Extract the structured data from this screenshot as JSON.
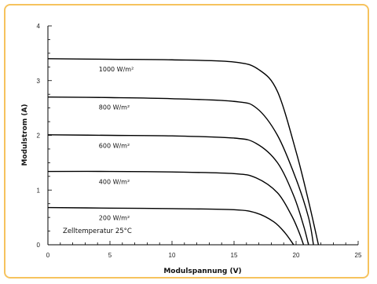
{
  "chart_data": {
    "type": "line",
    "xlabel": "Modulspannung (V)",
    "ylabel": "Modulstrom (A)",
    "xlim": [
      0,
      25
    ],
    "ylim": [
      0,
      4
    ],
    "xticks": [
      0,
      5,
      10,
      15,
      20,
      25
    ],
    "yticks": [
      0,
      1,
      2,
      3,
      4
    ],
    "grid": false,
    "annotation": "Zelltemperatur 25°C",
    "series": [
      {
        "name": "1000 W/m²",
        "isc": 3.4,
        "voc": 21.8,
        "points": [
          [
            0,
            3.4
          ],
          [
            5,
            3.39
          ],
          [
            10,
            3.38
          ],
          [
            15,
            3.34
          ],
          [
            17,
            3.2
          ],
          [
            18.5,
            2.8
          ],
          [
            20,
            1.7
          ],
          [
            21,
            0.8
          ],
          [
            21.8,
            0
          ]
        ]
      },
      {
        "name": "800 W/m²",
        "isc": 2.7,
        "voc": 21.4,
        "points": [
          [
            0,
            2.7
          ],
          [
            5,
            2.69
          ],
          [
            10,
            2.67
          ],
          [
            15,
            2.62
          ],
          [
            16.8,
            2.5
          ],
          [
            18.5,
            2.0
          ],
          [
            20,
            1.2
          ],
          [
            21,
            0.5
          ],
          [
            21.4,
            0
          ]
        ]
      },
      {
        "name": "600 W/m²",
        "isc": 2.0,
        "voc": 21.0,
        "points": [
          [
            0,
            2.01
          ],
          [
            5,
            2.0
          ],
          [
            10,
            1.99
          ],
          [
            15,
            1.95
          ],
          [
            16.8,
            1.85
          ],
          [
            18.5,
            1.5
          ],
          [
            19.8,
            0.9
          ],
          [
            20.6,
            0.35
          ],
          [
            21.0,
            0
          ]
        ]
      },
      {
        "name": "400 W/m²",
        "isc": 1.34,
        "voc": 20.6,
        "points": [
          [
            0,
            1.34
          ],
          [
            5,
            1.34
          ],
          [
            10,
            1.33
          ],
          [
            15,
            1.3
          ],
          [
            16.8,
            1.22
          ],
          [
            18.5,
            0.95
          ],
          [
            19.6,
            0.55
          ],
          [
            20.2,
            0.25
          ],
          [
            20.6,
            0
          ]
        ]
      },
      {
        "name": "200 W/m²",
        "isc": 0.68,
        "voc": 19.8,
        "points": [
          [
            0,
            0.68
          ],
          [
            5,
            0.67
          ],
          [
            10,
            0.66
          ],
          [
            15,
            0.64
          ],
          [
            16.8,
            0.58
          ],
          [
            18.2,
            0.42
          ],
          [
            19.1,
            0.22
          ],
          [
            19.8,
            0
          ]
        ]
      }
    ]
  }
}
